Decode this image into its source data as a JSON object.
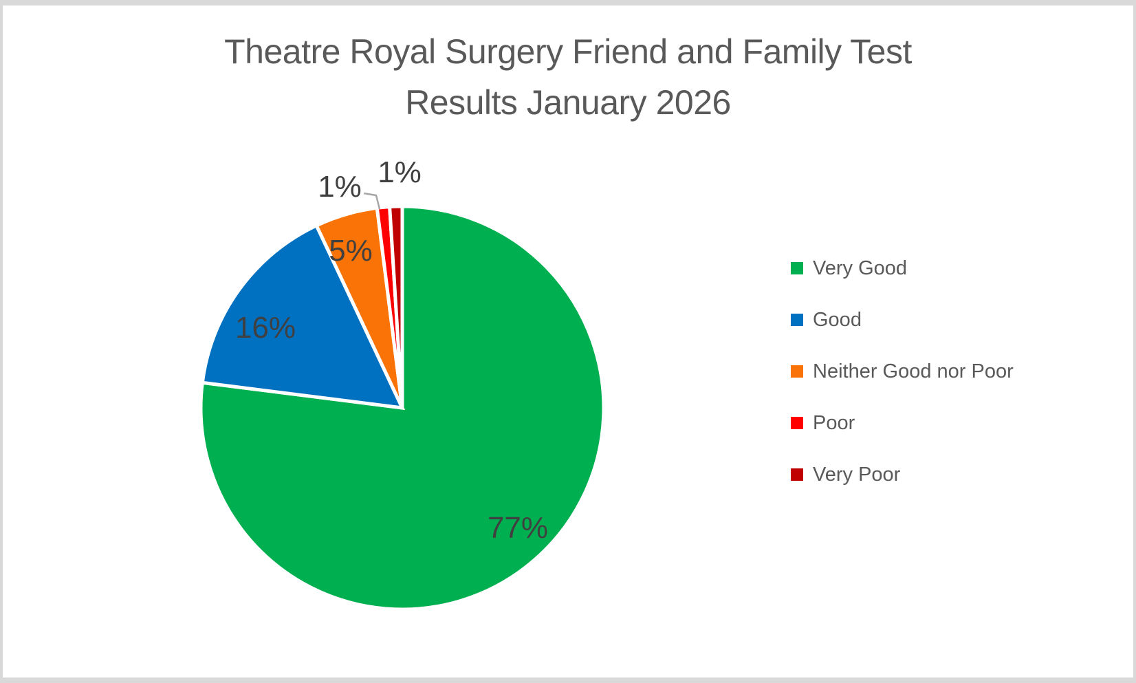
{
  "frame": {
    "background": "#FFFFFF",
    "border_color": "#D9D9D9"
  },
  "header": {
    "title_line1": "Theatre Royal Surgery Friend and Family Test",
    "title_line2": "Results January 2026"
  },
  "chart_data": {
    "type": "pie",
    "title": "Theatre Royal Surgery Friend and Family Test Results January 2026",
    "categories": [
      "Very Good",
      "Good",
      "Neither Good nor Poor",
      "Poor",
      "Very Poor"
    ],
    "values": [
      77,
      16,
      5,
      1,
      1
    ],
    "unit": "%",
    "data_labels": [
      "77%",
      "16%",
      "5%",
      "1%",
      "1%"
    ],
    "colors": [
      "#00B050",
      "#0070C0",
      "#F97306",
      "#FF0000",
      "#C00000"
    ],
    "start_angle_deg": 0,
    "direction": "clockwise",
    "legend_position": "right",
    "slice_border_color": "#FFFFFF",
    "leader_line_color": "#A6A6A6",
    "text_colors": {
      "title": "#595959",
      "data_label": "#404040",
      "legend": "#595959"
    }
  }
}
